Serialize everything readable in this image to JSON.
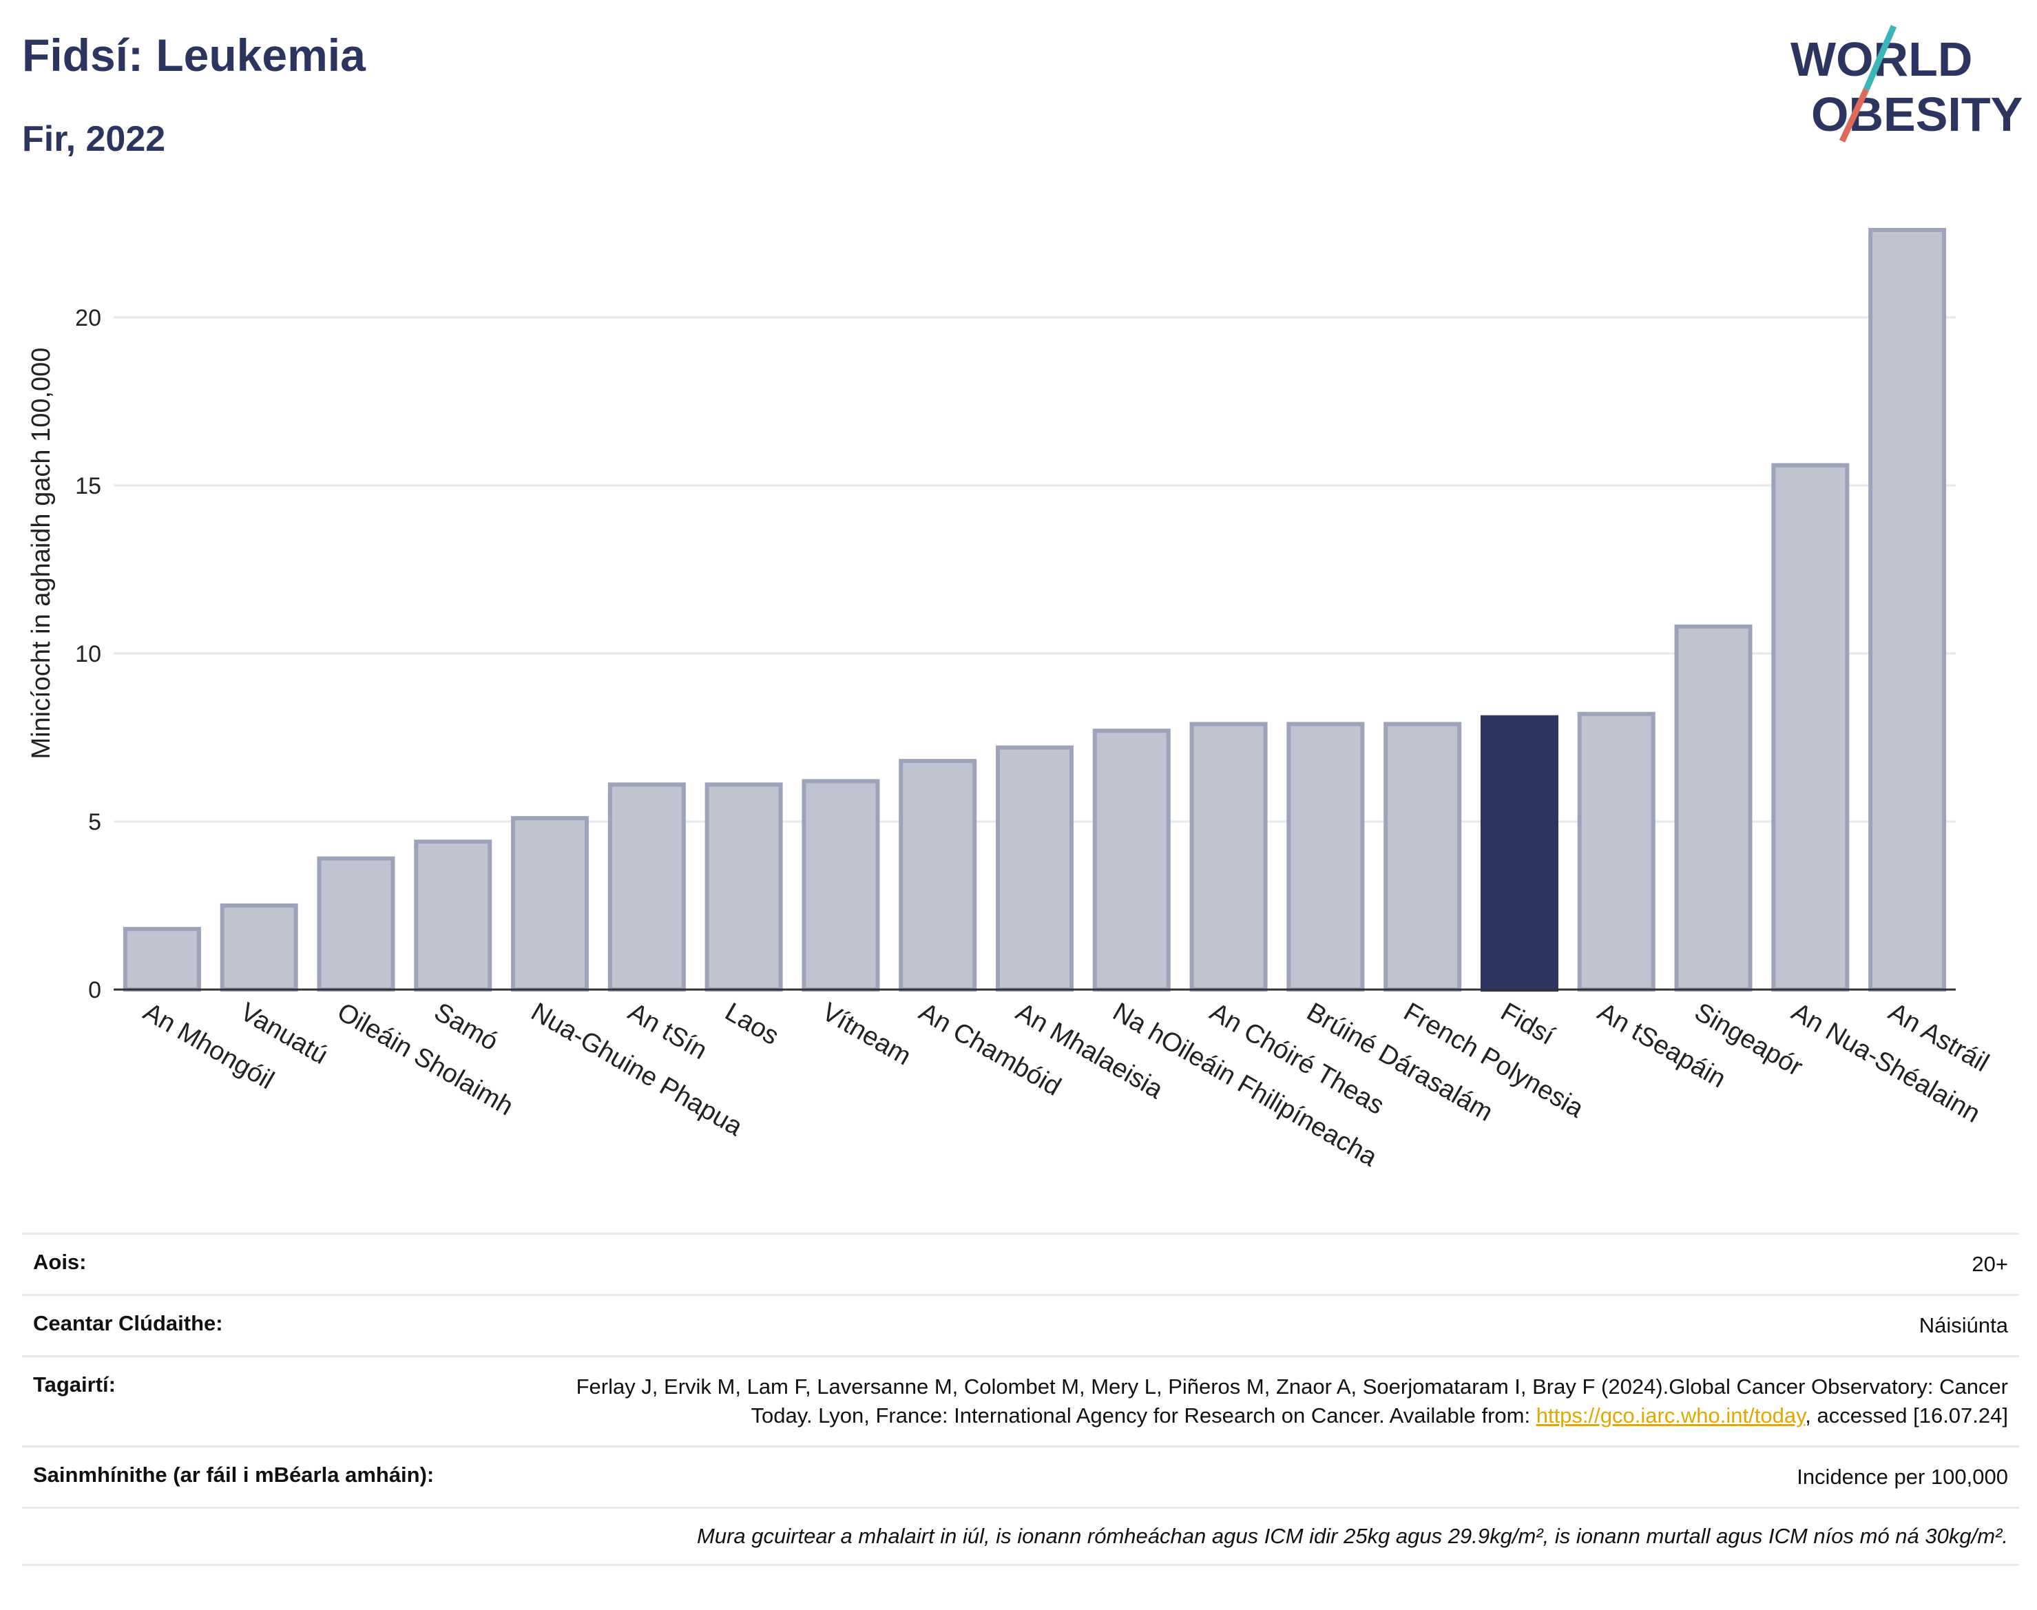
{
  "header": {
    "title": "Fidsí: Leukemia",
    "subtitle": "Fir, 2022"
  },
  "logo": {
    "line1": "WORLD",
    "line2": "OBESITY"
  },
  "colors": {
    "bar": "#c0c3d0",
    "bar_stroke": "#9ea3bb",
    "highlight": "#2b3560",
    "grid": "#e6e8ee",
    "accent_teal": "#3ab5b8",
    "accent_red": "#e06a5a"
  },
  "chart_data": {
    "type": "bar",
    "title": "Fidsí: Leukemia",
    "subtitle": "Fir, 2022",
    "ylabel": "Minicíocht in aghaidh gach 100,000",
    "xlabel": "",
    "ylim": [
      0,
      23.5
    ],
    "yticks": [
      0,
      5,
      10,
      15,
      20
    ],
    "grid": true,
    "highlight": "Fidsí",
    "categories": [
      "An Mhongóil",
      "Vanuatú",
      "Oileáin Sholaimh",
      "Samó",
      "Nua-Ghuine Phapua",
      "An tSín",
      "Laos",
      "Vítneam",
      "An Chambóid",
      "An Mhalaeisia",
      "Na hOileáin Fhilipíneacha",
      "An Chóiré Theas",
      "Brúiné Dárasalám",
      "French Polynesia",
      "Fidsí",
      "An tSeapáin",
      "Singeapór",
      "An Nua-Shéalainn",
      "An Astráil"
    ],
    "values": [
      1.8,
      2.5,
      3.9,
      4.4,
      5.1,
      6.1,
      6.1,
      6.2,
      6.8,
      7.2,
      7.7,
      7.9,
      7.9,
      7.9,
      8.1,
      8.2,
      10.8,
      15.6,
      22.6
    ]
  },
  "info": {
    "age_label": "Aois:",
    "age_value": "20+",
    "area_label": "Ceantar Clúdaithe:",
    "area_value": "Náisiúnta",
    "ref_label": "Tagairtí:",
    "ref_text": "Ferlay J, Ervik M, Lam F, Laversanne M, Colombet M, Mery L, Piñeros M, Znaor A, Soerjomataram I, Bray F (2024).Global Cancer Observatory: Cancer Today. Lyon, France: International Agency for Research on Cancer. Available from: ",
    "ref_link": "https://gco.iarc.who.int/today",
    "ref_after": ", accessed [16.07.24]",
    "def_label": "Sainmhínithe (ar fáil i mBéarla amháin):",
    "def_value": "Incidence per 100,000",
    "note": "Mura gcuirtear a mhalairt in iúl, is ionann rómheáchan agus ICM idir 25kg agus 29.9kg/m², is ionann murtall agus ICM níos mó ná 30kg/m²."
  }
}
